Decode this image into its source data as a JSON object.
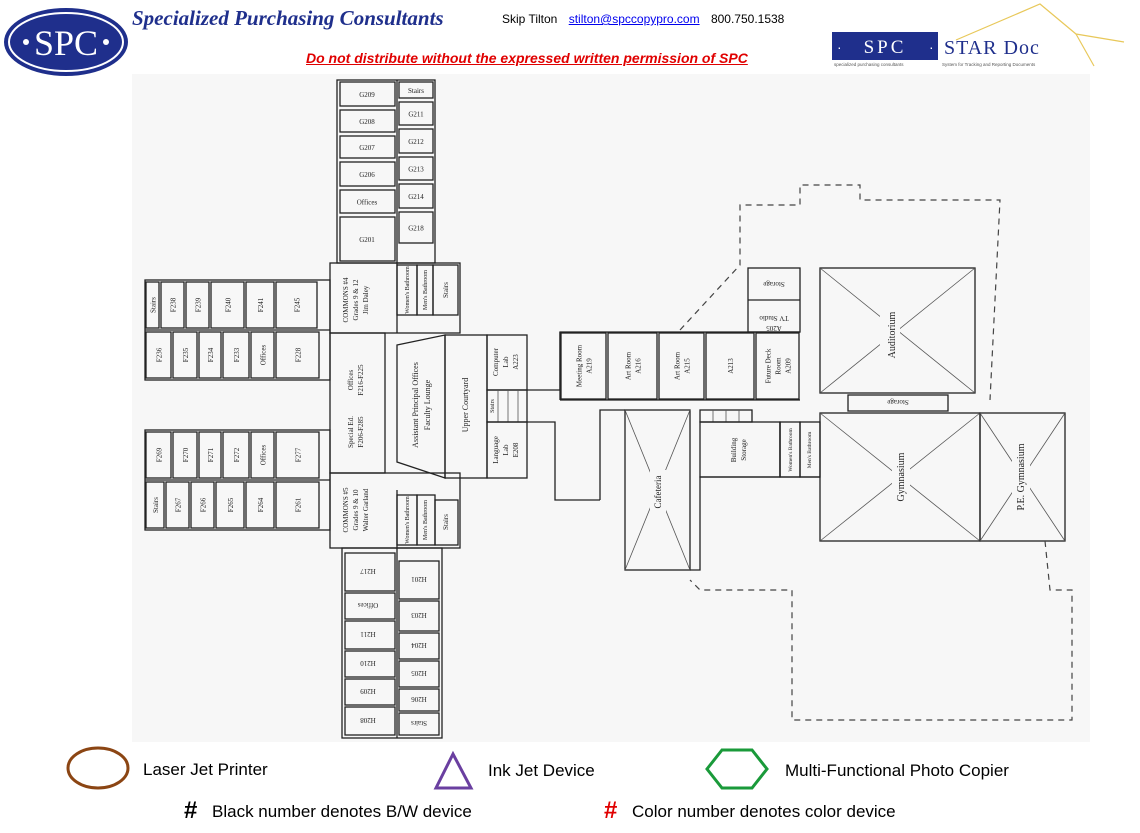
{
  "header": {
    "logo_text": "SPC",
    "company": "Specialized Purchasing Consultants",
    "contact_name": "Skip Tilton",
    "email": "stilton@spccopypro.com",
    "phone": "800.750.1538",
    "warning": "Do not distribute without the expressed written permission of SPC",
    "star_logo_spc": "SPC",
    "star_logo_text": "STAR Doc",
    "star_logo_sub_left": "specialized purchasing consultants",
    "star_logo_sub_right": "System for Tracking and Reporting Documents"
  },
  "floorplan": {
    "g_left": [
      "G209",
      "G208",
      "G207",
      "G206",
      "Offices",
      "G201"
    ],
    "g_right": [
      "Stairs",
      "G211",
      "G212",
      "G213",
      "G214",
      "G218"
    ],
    "f_top": [
      "Stairs",
      "F238",
      "F239",
      "F240",
      "F241",
      "F245"
    ],
    "f_mid": [
      "F236",
      "F235",
      "F234",
      "F233",
      "Offices",
      "F228"
    ],
    "f_low": [
      "F269",
      "F270",
      "F271",
      "F272",
      "Offices",
      "F277"
    ],
    "f_bottom": [
      "Stairs",
      "F267",
      "F266",
      "F265",
      "F264",
      "F261"
    ],
    "h_left": [
      "H217",
      "Offices",
      "H211",
      "H210",
      "H209",
      "H208"
    ],
    "h_right": [
      "H201",
      "H203",
      "H204",
      "H205",
      "H206",
      "Stairs"
    ],
    "commons4": [
      "COMMONS #4",
      "Grades 9 & 12",
      "Jim Daley"
    ],
    "commons5": [
      "COMMONS #5",
      "Grades 9 & 10",
      "Walter Garland"
    ],
    "womens": "Women's Bathroom",
    "mens": "Men's Bathroom",
    "stairs": "Stairs",
    "offices_f216": [
      "Offices",
      "F216-F225"
    ],
    "special_ed": [
      "Special Ed.",
      "F206-F285"
    ],
    "asst_principal": [
      "Assistant Principal Offices",
      "Faculty Lounge"
    ],
    "upper_courtyard": "Upper Courtyard",
    "computer_lab": [
      "Computer",
      "Lab",
      "A223"
    ],
    "language_lab": [
      "Language",
      "Lab",
      "E208"
    ],
    "a_rooms": [
      [
        "Meeting Room",
        "A219"
      ],
      [
        "Art Room",
        "A216"
      ],
      [
        "Art Room",
        "A215"
      ],
      [
        "A213"
      ],
      [
        "Future Deck",
        "Room",
        "A209"
      ]
    ],
    "storage": "Storage",
    "tv_studio": [
      "TV Studio",
      "A205"
    ],
    "auditorium": "Auditorium",
    "cafeteria": "Cafeteria",
    "building_storage": [
      "Building",
      "Storage"
    ],
    "gymnasium": "Gymnasium",
    "pe_gym": "P.E. Gymnasium"
  },
  "legend": {
    "laser": "Laser Jet Printer",
    "inkjet": "Ink Jet Device",
    "mfp": "Multi-Functional Photo Copier",
    "bw_symbol": "#",
    "bw": "Black number denotes B/W device",
    "color_symbol": "#",
    "color": "Color number denotes color device",
    "colors": {
      "laser": "#8b4513",
      "inkjet": "#6a3fa0",
      "mfp": "#1a9a3a",
      "red": "#e00000",
      "navy": "#1f2f8c"
    }
  }
}
